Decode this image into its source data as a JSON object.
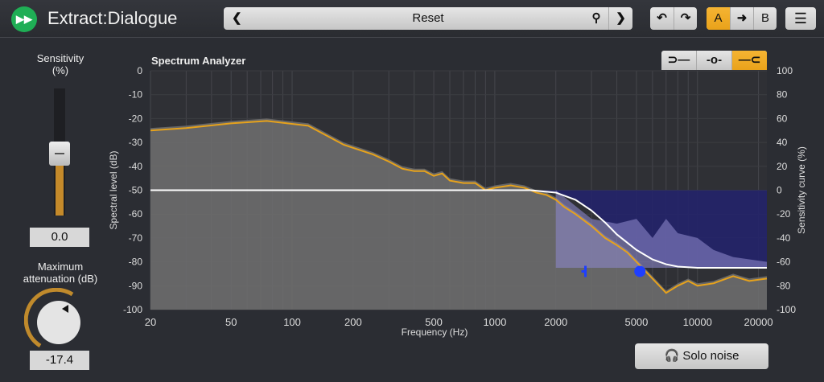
{
  "app": {
    "title": "Extract:Dialogue",
    "logo_icon": "fast-forward-icon"
  },
  "toolbar": {
    "preset": "Reset",
    "prev_icon": "chevron-left-icon",
    "search_icon": "search-icon",
    "next_icon": "chevron-right-icon",
    "undo_icon": "undo-icon",
    "redo_icon": "redo-icon",
    "a_label": "A",
    "arrow_icon": "arrow-right-icon",
    "b_label": "B",
    "menu_icon": "list-icon"
  },
  "sensitivity": {
    "label_line1": "Sensitivity",
    "label_line2": "(%)",
    "value": "0.0",
    "slider_value": 0
  },
  "attenuation": {
    "label_line1": "Maximum",
    "label_line2": "attenuation (dB)",
    "value": "-17.4"
  },
  "analyzer": {
    "title": "Spectrum Analyzer",
    "modes": [
      "low-shelf-icon",
      "bell-icon",
      "high-shelf-icon"
    ],
    "active_mode": 2,
    "xlabel": "Frequency (Hz)",
    "ylabel_left": "Spectral level (dB)",
    "ylabel_right": "Sensitivity curve (%)",
    "xticks": [
      "20",
      "50",
      "100",
      "200",
      "500",
      "1000",
      "2000",
      "5000",
      "10000",
      "20000"
    ],
    "yticks_left": [
      "0",
      "-10",
      "-20",
      "-30",
      "-40",
      "-50",
      "-60",
      "-70",
      "-80",
      "-90",
      "-100"
    ],
    "yticks_right": [
      "100",
      "80",
      "60",
      "40",
      "20",
      "0",
      "-20",
      "-40",
      "-60",
      "-80",
      "-100"
    ]
  },
  "solo": {
    "label": "Solo noise",
    "icon": "headphones-icon"
  },
  "colors": {
    "accent": "#eaa424",
    "spectrum": "#e6a21c",
    "noise_region": "#24246a",
    "marker": "#1f3fff"
  },
  "chart_data": {
    "type": "line",
    "xscale": "log",
    "xlim": [
      20,
      22000
    ],
    "ylim": [
      -100,
      0
    ],
    "spectrum": [
      [
        20,
        -25
      ],
      [
        30,
        -24
      ],
      [
        50,
        -22
      ],
      [
        75,
        -21
      ],
      [
        120,
        -23
      ],
      [
        180,
        -31
      ],
      [
        250,
        -35
      ],
      [
        300,
        -38
      ],
      [
        350,
        -41
      ],
      [
        400,
        -42
      ],
      [
        450,
        -42
      ],
      [
        500,
        -44
      ],
      [
        550,
        -43
      ],
      [
        600,
        -46
      ],
      [
        700,
        -47
      ],
      [
        800,
        -47
      ],
      [
        900,
        -50
      ],
      [
        1000,
        -49
      ],
      [
        1200,
        -48
      ],
      [
        1400,
        -49
      ],
      [
        1600,
        -51
      ],
      [
        1800,
        -52
      ],
      [
        2000,
        -54
      ],
      [
        2200,
        -57
      ],
      [
        2500,
        -60
      ],
      [
        3000,
        -65
      ],
      [
        3500,
        -70
      ],
      [
        4000,
        -73
      ],
      [
        4500,
        -76
      ],
      [
        5000,
        -80
      ],
      [
        6000,
        -87
      ],
      [
        7000,
        -93
      ],
      [
        8000,
        -90
      ],
      [
        9000,
        -88
      ],
      [
        10000,
        -90
      ],
      [
        12000,
        -89
      ],
      [
        15000,
        -86
      ],
      [
        18000,
        -88
      ],
      [
        22000,
        -87
      ]
    ],
    "noise": [
      [
        2000,
        -50
      ],
      [
        3000,
        -62
      ],
      [
        4000,
        -64
      ],
      [
        5000,
        -62
      ],
      [
        6000,
        -70
      ],
      [
        7000,
        -62
      ],
      [
        8000,
        -68
      ],
      [
        10000,
        -70
      ],
      [
        12000,
        -75
      ],
      [
        15000,
        -78
      ],
      [
        22000,
        -80
      ]
    ],
    "sensitivity_curve": [
      [
        20,
        0
      ],
      [
        1500,
        0
      ],
      [
        2000,
        -2
      ],
      [
        2500,
        -8
      ],
      [
        3000,
        -17
      ],
      [
        3500,
        -27
      ],
      [
        4000,
        -37
      ],
      [
        5000,
        -50
      ],
      [
        6000,
        -58
      ],
      [
        7000,
        -62
      ],
      [
        8000,
        -64
      ],
      [
        10000,
        -65
      ],
      [
        22000,
        -65
      ]
    ],
    "markers": [
      {
        "type": "bar",
        "freq": 2800,
        "db": -84
      },
      {
        "type": "dot",
        "freq": 5200,
        "db": -84
      }
    ]
  }
}
